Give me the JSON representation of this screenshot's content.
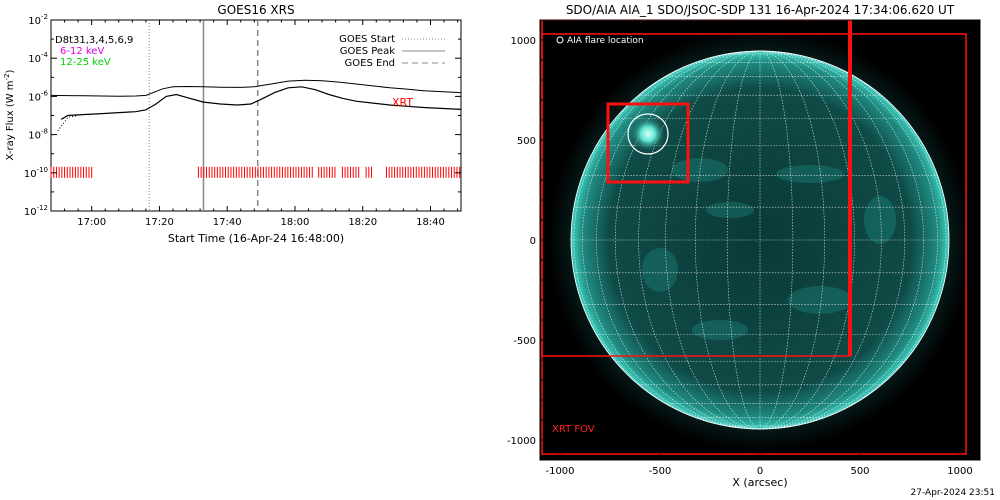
{
  "chart_data": [
    {
      "type": "line",
      "title": "GOES16 XRS",
      "xlabel": "Start Time (16-Apr-24 16:48:00)",
      "ylabel": "X-ray Flux (W m",
      "ylabel_sup": "-2",
      "ylabel_close": ")",
      "xlim_minutes": [
        0,
        121
      ],
      "ylim_exp": [
        -12,
        -2
      ],
      "yscale": "log",
      "x_ticks": [
        {
          "minutes": 12,
          "label": "17:00"
        },
        {
          "minutes": 32,
          "label": "17:20"
        },
        {
          "minutes": 52,
          "label": "17:40"
        },
        {
          "minutes": 72,
          "label": "18:00"
        },
        {
          "minutes": 92,
          "label": "18:20"
        },
        {
          "minutes": 112,
          "label": "18:40"
        }
      ],
      "y_ticks": [
        {
          "exp": -12,
          "base": "10",
          "sup": "-12"
        },
        {
          "exp": -10,
          "base": "10",
          "sup": "-10"
        },
        {
          "exp": -8,
          "base": "10",
          "sup": "-8"
        },
        {
          "exp": -6,
          "base": "10",
          "sup": "-6"
        },
        {
          "exp": -4,
          "base": "10",
          "sup": "-4"
        },
        {
          "exp": -2,
          "base": "10",
          "sup": "-2"
        }
      ],
      "info_labels": [
        {
          "text": "D8t31,3,4,5,6,9",
          "color": "#000000"
        },
        {
          "text": "6-12 keV",
          "color": "#e000e0"
        },
        {
          "text": "12-25 keV",
          "color": "#00cc00"
        }
      ],
      "legend": [
        {
          "label": "GOES Start",
          "style": "dotted"
        },
        {
          "label": "GOES Peak",
          "style": "solid"
        },
        {
          "label": "GOES End",
          "style": "dashed"
        }
      ],
      "xrt_label": "XRT",
      "event_lines": {
        "start": 29,
        "peak": 45,
        "end": 61
      },
      "series": [
        {
          "style": "solid",
          "points": [
            [
              0,
              -5.95
            ],
            [
              5,
              -5.96
            ],
            [
              10,
              -5.97
            ],
            [
              15,
              -5.98
            ],
            [
              20,
              -5.99
            ],
            [
              25,
              -5.98
            ],
            [
              28,
              -5.95
            ],
            [
              33,
              -5.6
            ],
            [
              36,
              -5.5
            ],
            [
              40,
              -5.48
            ],
            [
              45,
              -5.5
            ],
            [
              50,
              -5.52
            ],
            [
              56,
              -5.53
            ],
            [
              60,
              -5.5
            ],
            [
              65,
              -5.35
            ],
            [
              70,
              -5.2
            ],
            [
              75,
              -5.15
            ],
            [
              80,
              -5.18
            ],
            [
              85,
              -5.25
            ],
            [
              90,
              -5.35
            ],
            [
              95,
              -5.45
            ],
            [
              100,
              -5.55
            ],
            [
              105,
              -5.62
            ],
            [
              110,
              -5.7
            ],
            [
              115,
              -5.75
            ],
            [
              121,
              -5.8
            ]
          ]
        },
        {
          "style": "solid",
          "points": [
            [
              3,
              -7.2
            ],
            [
              5,
              -7.0
            ],
            [
              10,
              -6.95
            ],
            [
              15,
              -6.9
            ],
            [
              20,
              -6.85
            ],
            [
              25,
              -6.8
            ],
            [
              28,
              -6.7
            ],
            [
              31,
              -6.4
            ],
            [
              34,
              -6.0
            ],
            [
              37,
              -5.9
            ],
            [
              40,
              -6.05
            ],
            [
              45,
              -6.3
            ],
            [
              50,
              -6.4
            ],
            [
              55,
              -6.45
            ],
            [
              59,
              -6.4
            ],
            [
              62,
              -6.15
            ],
            [
              66,
              -5.8
            ],
            [
              70,
              -5.55
            ],
            [
              74,
              -5.5
            ],
            [
              78,
              -5.65
            ],
            [
              82,
              -5.9
            ],
            [
              86,
              -6.1
            ],
            [
              90,
              -6.25
            ],
            [
              95,
              -6.35
            ],
            [
              100,
              -6.45
            ],
            [
              105,
              -6.52
            ],
            [
              110,
              -6.58
            ],
            [
              115,
              -6.63
            ],
            [
              121,
              -6.68
            ]
          ]
        },
        {
          "style": "dotted",
          "points": [
            [
              2,
              -7.8
            ],
            [
              5,
              -7.1
            ],
            [
              8,
              -7.0
            ]
          ]
        }
      ],
      "xrt_coverage_minutes": [
        [
          0,
          12.5
        ],
        [
          43.5,
          77.5
        ],
        [
          79,
          84
        ],
        [
          86,
          91.5
        ],
        [
          93,
          95
        ],
        [
          99,
          121
        ]
      ]
    },
    {
      "type": "heatmap",
      "title": "SDO/AIA AIA_1 SDO/JSOC-SDP 131 16-Apr-2024 17:34:06.620 UT",
      "xlabel": "X (arcsec)",
      "xlim": [
        -1100,
        1100
      ],
      "ylim": [
        -1100,
        1100
      ],
      "x_ticks": [
        -1000,
        -500,
        0,
        500,
        1000
      ],
      "y_ticks": [
        -1000,
        -500,
        0,
        500,
        1000
      ],
      "legend_flare": "AIA flare location",
      "xrt_fov_label": "XRT FOV",
      "timestamp": "27-Apr-2024 23:51",
      "solar_radius_arcsec": 945,
      "grid_step_deg": 10,
      "flare": {
        "x": -560,
        "y": 530,
        "r": 100
      },
      "flare_box": {
        "x0": -760,
        "x1": -360,
        "y0": 290,
        "y1": 680
      },
      "fov_outer": {
        "x0": -1090,
        "x1": 1030,
        "y0": -1070,
        "y1": 1030
      },
      "fov_inner": {
        "x0": -1090,
        "x1": 450,
        "y0": -580,
        "y1": 1100
      },
      "colors": {
        "disk": "#0a3b38",
        "bright": "#2fbfb0",
        "grid": "#ffffff",
        "fov": "#ff1010"
      }
    }
  ]
}
